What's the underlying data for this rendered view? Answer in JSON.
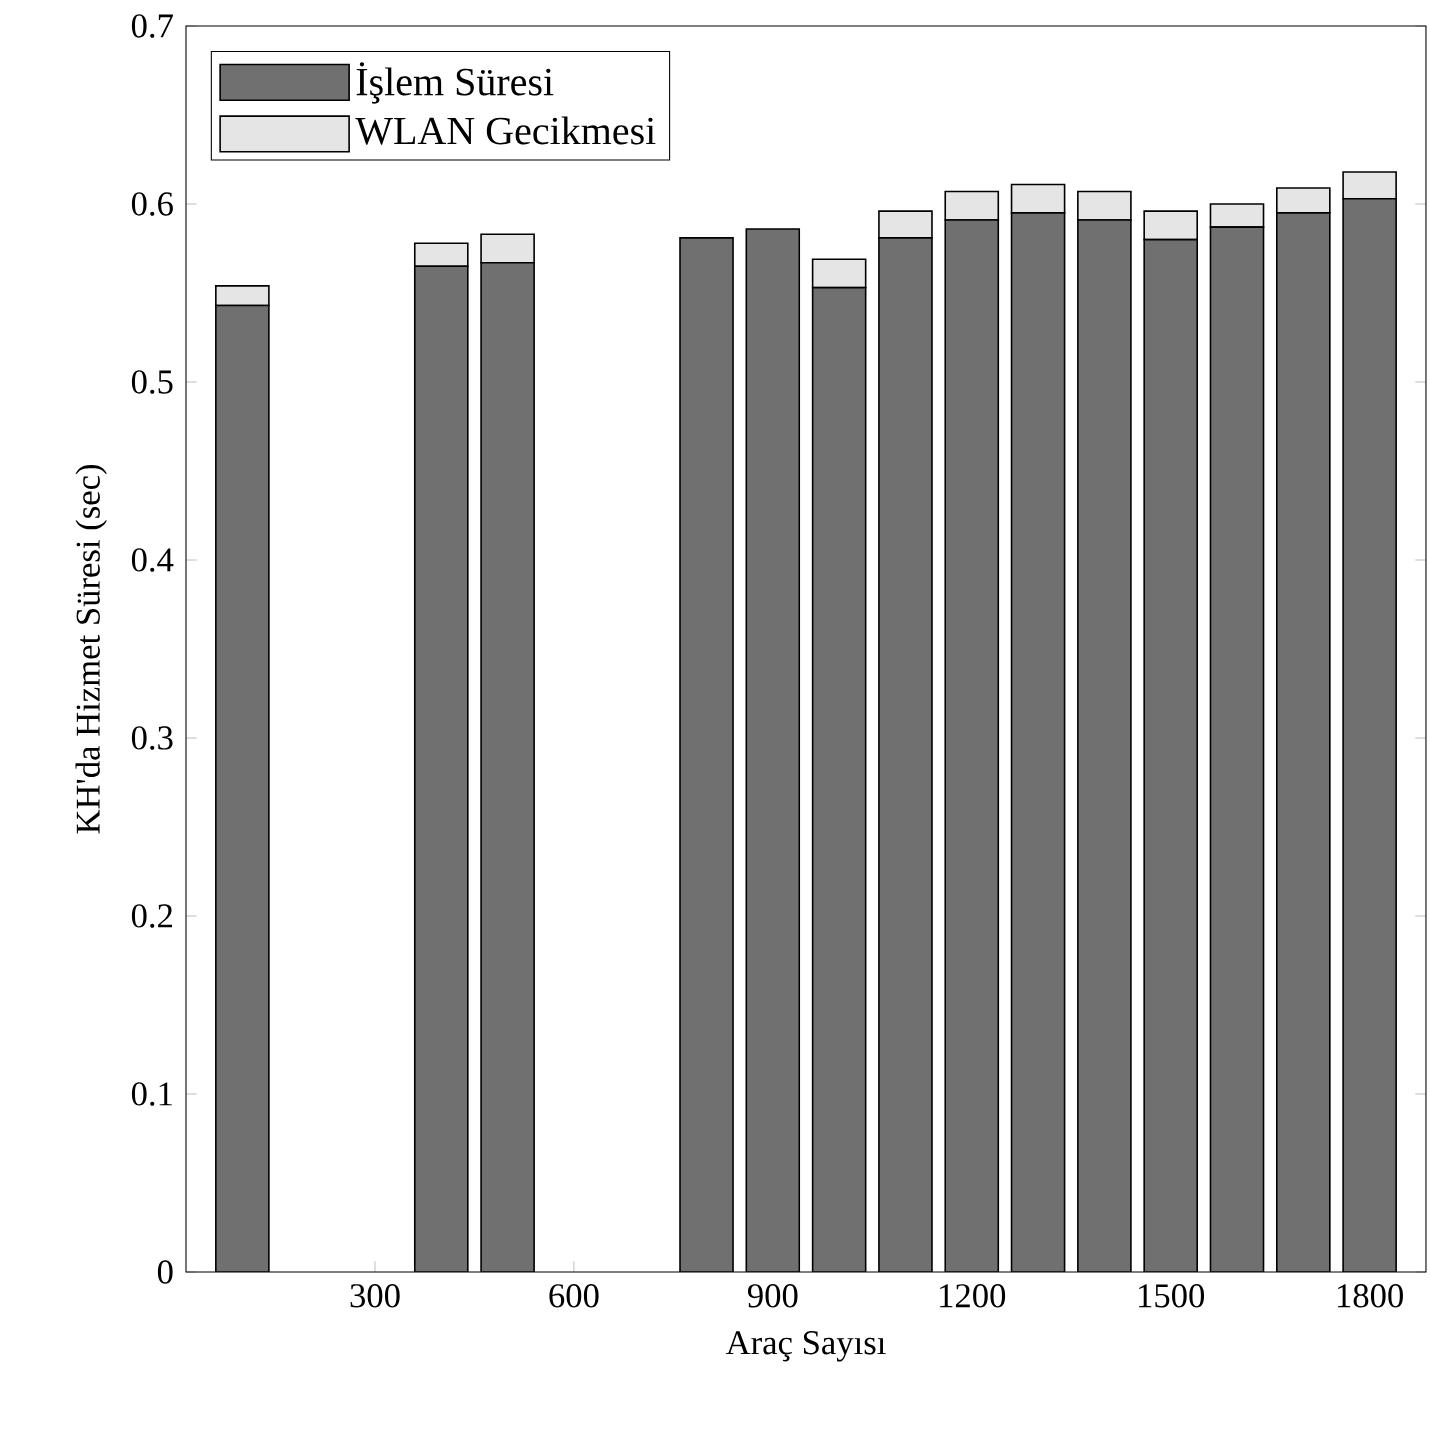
{
  "chart_data": {
    "type": "bar",
    "stacked": true,
    "xlabel": "Araç Sayısı",
    "ylabel": "KH'da Hizmet Süresi (sec)",
    "x": [
      100,
      200,
      300,
      400,
      500,
      600,
      700,
      800,
      900,
      1000,
      1100,
      1200,
      1300,
      1400,
      1500,
      1600,
      1700,
      1800
    ],
    "series": [
      {
        "name": "İşlem Süresi",
        "color": "#707070",
        "values": [
          0.543,
          null,
          null,
          0.565,
          0.567,
          null,
          null,
          0.581,
          0.586,
          0.553,
          0.581,
          0.591,
          0.595,
          0.591,
          0.58,
          0.587,
          0.595,
          0.603
        ]
      },
      {
        "name": "WLAN Gecikmesi",
        "color": "#e5e5e5",
        "values": [
          0.011,
          null,
          null,
          0.013,
          0.016,
          null,
          null,
          null,
          null,
          0.016,
          0.015,
          0.016,
          0.016,
          0.016,
          0.016,
          0.013,
          0.014,
          0.015
        ]
      }
    ],
    "xlim": [
      15,
      1885
    ],
    "xticks": [
      300,
      600,
      900,
      1200,
      1500,
      1800
    ],
    "ylim": [
      0,
      0.7
    ],
    "yticks": [
      0,
      0.1,
      0.2,
      0.3,
      0.4,
      0.5,
      0.6,
      0.7
    ],
    "grid": false,
    "legend": "top left"
  }
}
